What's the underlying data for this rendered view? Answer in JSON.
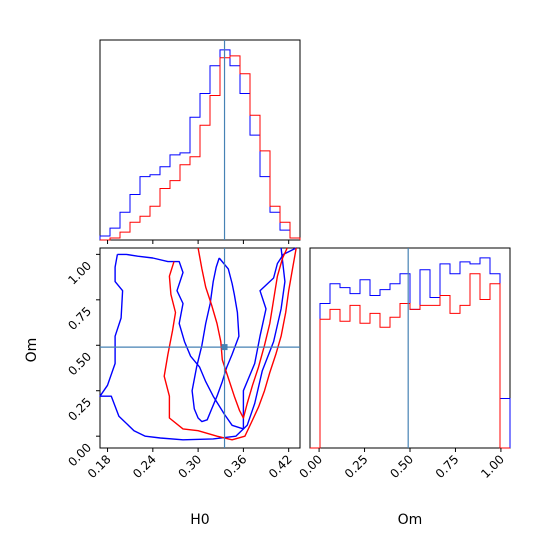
{
  "chart_data": {
    "type": "corner",
    "parameters": [
      "H0",
      "Om"
    ],
    "truth": {
      "H0": 0.335,
      "Om": 0.49
    },
    "truth_color": "#4682b4",
    "series_colors": {
      "blue": "#0000ff",
      "red": "#ff0000"
    },
    "panels": {
      "H0_hist": {
        "type": "step-histogram",
        "xlim": [
          0.17,
          0.435
        ],
        "bins": [
          0.17,
          0.1832,
          0.1965,
          0.2097,
          0.223,
          0.2362,
          0.2495,
          0.2628,
          0.276,
          0.2892,
          0.3025,
          0.3157,
          0.329,
          0.3423,
          0.3555,
          0.3688,
          0.382,
          0.3952,
          0.4085,
          0.4218,
          0.435
        ],
        "series": [
          {
            "color": "blue",
            "values": [
              0.02,
              0.06,
              0.14,
              0.23,
              0.32,
              0.33,
              0.37,
              0.43,
              0.44,
              0.62,
              0.74,
              0.88,
              0.96,
              0.88,
              0.74,
              0.53,
              0.32,
              0.14,
              0.05,
              0.01
            ]
          },
          {
            "color": "red",
            "values": [
              0.0,
              0.01,
              0.04,
              0.09,
              0.12,
              0.17,
              0.26,
              0.3,
              0.38,
              0.42,
              0.58,
              0.73,
              0.92,
              0.93,
              0.84,
              0.63,
              0.45,
              0.17,
              0.09,
              0.01
            ]
          }
        ]
      },
      "Om_hist": {
        "type": "step-histogram",
        "xlim": [
          -0.05,
          1.05
        ],
        "bins": [
          -0.05,
          0.005,
          0.06,
          0.115,
          0.17,
          0.225,
          0.28,
          0.335,
          0.39,
          0.445,
          0.5,
          0.555,
          0.61,
          0.665,
          0.72,
          0.775,
          0.83,
          0.885,
          0.94,
          0.995,
          1.05
        ],
        "series": [
          {
            "color": "blue",
            "values": [
              0.0,
              0.73,
              0.83,
              0.81,
              0.78,
              0.85,
              0.77,
              0.8,
              0.83,
              0.88,
              0.7,
              0.9,
              0.76,
              0.93,
              0.88,
              0.94,
              0.93,
              0.96,
              0.88,
              0.25
            ]
          },
          {
            "color": "red",
            "values": [
              0.0,
              0.65,
              0.7,
              0.64,
              0.72,
              0.63,
              0.68,
              0.61,
              0.66,
              0.73,
              0.7,
              0.72,
              0.72,
              0.77,
              0.68,
              0.72,
              0.88,
              0.75,
              0.83,
              0.0
            ]
          }
        ]
      },
      "H0_Om_contour": {
        "type": "contour",
        "xlim": [
          0.17,
          0.435
        ],
        "ylim": [
          -0.065,
          1.035
        ],
        "series": [
          {
            "color": "blue",
            "paths": [
              [
                [
                  0.193,
                  1.0
                ],
                [
                  0.197,
                  1.0
                ],
                [
                  0.205,
                  1.0
                ],
                [
                  0.22,
                  0.99
                ],
                [
                  0.24,
                  0.98
                ],
                [
                  0.26,
                  0.96
                ],
                [
                  0.275,
                  0.96
                ],
                [
                  0.28,
                  0.9
                ],
                [
                  0.272,
                  0.8
                ],
                [
                  0.28,
                  0.73
                ],
                [
                  0.275,
                  0.62
                ],
                [
                  0.282,
                  0.52
                ],
                [
                  0.29,
                  0.44
                ],
                [
                  0.302,
                  0.38
                ],
                [
                  0.31,
                  0.3
                ],
                [
                  0.32,
                  0.22
                ],
                [
                  0.335,
                  0.12
                ],
                [
                  0.345,
                  0.06
                ],
                [
                  0.36,
                  0.04
                ],
                [
                  0.36,
                  0.25
                ],
                [
                  0.375,
                  0.4
                ],
                [
                  0.382,
                  0.55
                ],
                [
                  0.39,
                  0.7
                ],
                [
                  0.382,
                  0.8
                ],
                [
                  0.4,
                  0.87
                ],
                [
                  0.405,
                  0.95
                ],
                [
                  0.413,
                  1.0
                ],
                [
                  0.43,
                  1.035
                ]
              ],
              [
                [
                  0.41,
                  1.035
                ],
                [
                  0.415,
                  0.85
                ],
                [
                  0.41,
                  0.7
                ],
                [
                  0.4,
                  0.52
                ],
                [
                  0.385,
                  0.36
                ],
                [
                  0.375,
                  0.18
                ],
                [
                  0.365,
                  0.06
                ],
                [
                  0.35,
                  0.0
                ],
                [
                  0.32,
                  -0.015
                ],
                [
                  0.28,
                  -0.02
                ],
                [
                  0.25,
                  -0.01
                ],
                [
                  0.23,
                  0.0
                ],
                [
                  0.215,
                  0.03
                ],
                [
                  0.195,
                  0.11
                ],
                [
                  0.185,
                  0.22
                ],
                [
                  0.17,
                  0.22
                ],
                [
                  0.18,
                  0.28
                ],
                [
                  0.19,
                  0.4
                ],
                [
                  0.19,
                  0.55
                ],
                [
                  0.198,
                  0.65
                ],
                [
                  0.2,
                  0.8
                ],
                [
                  0.19,
                  0.85
                ],
                [
                  0.19,
                  0.93
                ],
                [
                  0.193,
                  1.0
                ]
              ],
              [
                [
                  0.328,
                  0.98
                ],
                [
                  0.34,
                  0.92
                ],
                [
                  0.345,
                  0.84
                ],
                [
                  0.348,
                  0.78
                ],
                [
                  0.352,
                  0.68
                ],
                [
                  0.354,
                  0.55
                ],
                [
                  0.345,
                  0.45
                ],
                [
                  0.338,
                  0.38
                ],
                [
                  0.332,
                  0.3
                ],
                [
                  0.325,
                  0.22
                ],
                [
                  0.318,
                  0.15
                ],
                [
                  0.312,
                  0.09
                ],
                [
                  0.305,
                  0.08
                ],
                [
                  0.3,
                  0.1
                ],
                [
                  0.295,
                  0.15
                ],
                [
                  0.292,
                  0.25
                ],
                [
                  0.298,
                  0.38
                ],
                [
                  0.305,
                  0.5
                ],
                [
                  0.31,
                  0.62
                ],
                [
                  0.316,
                  0.73
                ],
                [
                  0.32,
                  0.85
                ],
                [
                  0.324,
                  0.93
                ],
                [
                  0.328,
                  0.98
                ]
              ]
            ]
          },
          {
            "color": "red",
            "paths": [
              [
                [
                  0.268,
                  0.96
                ],
                [
                  0.262,
                  0.88
                ],
                [
                  0.264,
                  0.78
                ],
                [
                  0.27,
                  0.68
                ],
                [
                  0.266,
                  0.58
                ],
                [
                  0.26,
                  0.45
                ],
                [
                  0.255,
                  0.33
                ],
                [
                  0.262,
                  0.22
                ],
                [
                  0.262,
                  0.1
                ],
                [
                  0.28,
                  0.04
                ],
                [
                  0.3,
                  0.03
                ],
                [
                  0.325,
                  0.0
                ],
                [
                  0.345,
                  -0.02
                ],
                [
                  0.362,
                  0.0
                ],
                [
                  0.37,
                  0.07
                ],
                [
                  0.38,
                  0.16
                ],
                [
                  0.388,
                  0.25
                ],
                [
                  0.395,
                  0.35
                ],
                [
                  0.403,
                  0.45
                ],
                [
                  0.41,
                  0.55
                ],
                [
                  0.416,
                  0.68
                ],
                [
                  0.42,
                  0.8
                ],
                [
                  0.425,
                  0.92
                ],
                [
                  0.43,
                  1.035
                ]
              ],
              [
                [
                  0.3,
                  1.035
                ],
                [
                  0.305,
                  0.92
                ],
                [
                  0.31,
                  0.82
                ],
                [
                  0.318,
                  0.72
                ],
                [
                  0.325,
                  0.62
                ],
                [
                  0.33,
                  0.52
                ],
                [
                  0.332,
                  0.42
                ],
                [
                  0.34,
                  0.32
                ],
                [
                  0.348,
                  0.22
                ],
                [
                  0.355,
                  0.14
                ],
                [
                  0.36,
                  0.1
                ],
                [
                  0.365,
                  0.18
                ],
                [
                  0.372,
                  0.28
                ],
                [
                  0.38,
                  0.38
                ],
                [
                  0.388,
                  0.5
                ],
                [
                  0.395,
                  0.62
                ],
                [
                  0.4,
                  0.75
                ],
                [
                  0.405,
                  0.88
                ],
                [
                  0.412,
                  0.98
                ],
                [
                  0.418,
                  1.035
                ]
              ]
            ]
          }
        ]
      }
    },
    "xlabels": [
      "H0",
      "Om"
    ],
    "ylabels": [
      "",
      "Om"
    ],
    "tick_labels": {
      "H0": [
        "0.18",
        "0.24",
        "0.30",
        "0.36",
        "0.42"
      ],
      "Om": [
        "0.00",
        "0.25",
        "0.50",
        "0.75",
        "1.00"
      ]
    },
    "tick_values": {
      "H0": [
        0.18,
        0.24,
        0.3,
        0.36,
        0.42
      ],
      "Om": [
        0.0,
        0.25,
        0.5,
        0.75,
        1.0
      ]
    }
  }
}
